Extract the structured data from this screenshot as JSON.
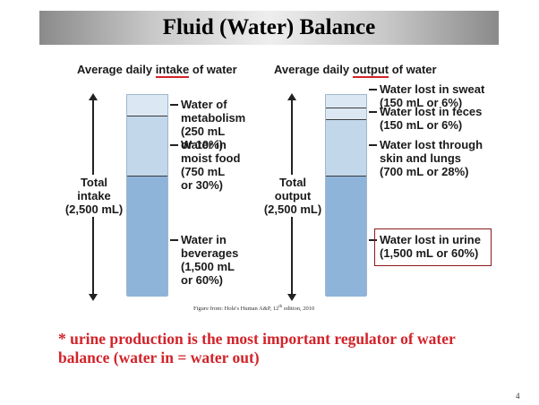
{
  "title": "Fluid (Water) Balance",
  "intake": {
    "heading_pre": "Average daily ",
    "heading_ul": "intake",
    "heading_post": " of water",
    "total_label": "Total\nintake\n(2,500 mL)",
    "sources": [
      {
        "label": "Water of\nmetabolism\n(250 mL\nor 10%)",
        "ml": 250,
        "percent": 10
      },
      {
        "label": "Water in\nmoist food\n(750 mL\nor 30%)",
        "ml": 750,
        "percent": 30
      },
      {
        "label": "Water in\nbeverages\n(1,500 mL\nor 60%)",
        "ml": 1500,
        "percent": 60
      }
    ]
  },
  "output": {
    "heading_pre": "Average daily ",
    "heading_ul": "output",
    "heading_post": " of water",
    "total_label": "Total\noutput\n(2,500 mL)",
    "sources": [
      {
        "label": "Water lost in sweat\n(150 mL or 6%)",
        "ml": 150,
        "percent": 6
      },
      {
        "label": "Water lost in feces\n(150 mL or 6%)",
        "ml": 150,
        "percent": 6
      },
      {
        "label": "Water lost through\nskin and lungs\n(700 mL or 28%)",
        "ml": 700,
        "percent": 28
      },
      {
        "label": "Water lost in urine\n(1,500 mL or 60%)",
        "ml": 1500,
        "percent": 60,
        "highlighted": true
      }
    ]
  },
  "credit": {
    "pre": "Figure from: Hole's Human A&P, 12",
    "sup": "th",
    "post": " edition, 2010"
  },
  "note": "* urine production is the most important regulator of water balance (water in = water out)",
  "page_number": "4",
  "colors": {
    "accent": "#d2232a",
    "bar_light": "#dbe8f3",
    "bar_mid": "#c2d7ea",
    "bar_dark": "#8fb4da"
  }
}
